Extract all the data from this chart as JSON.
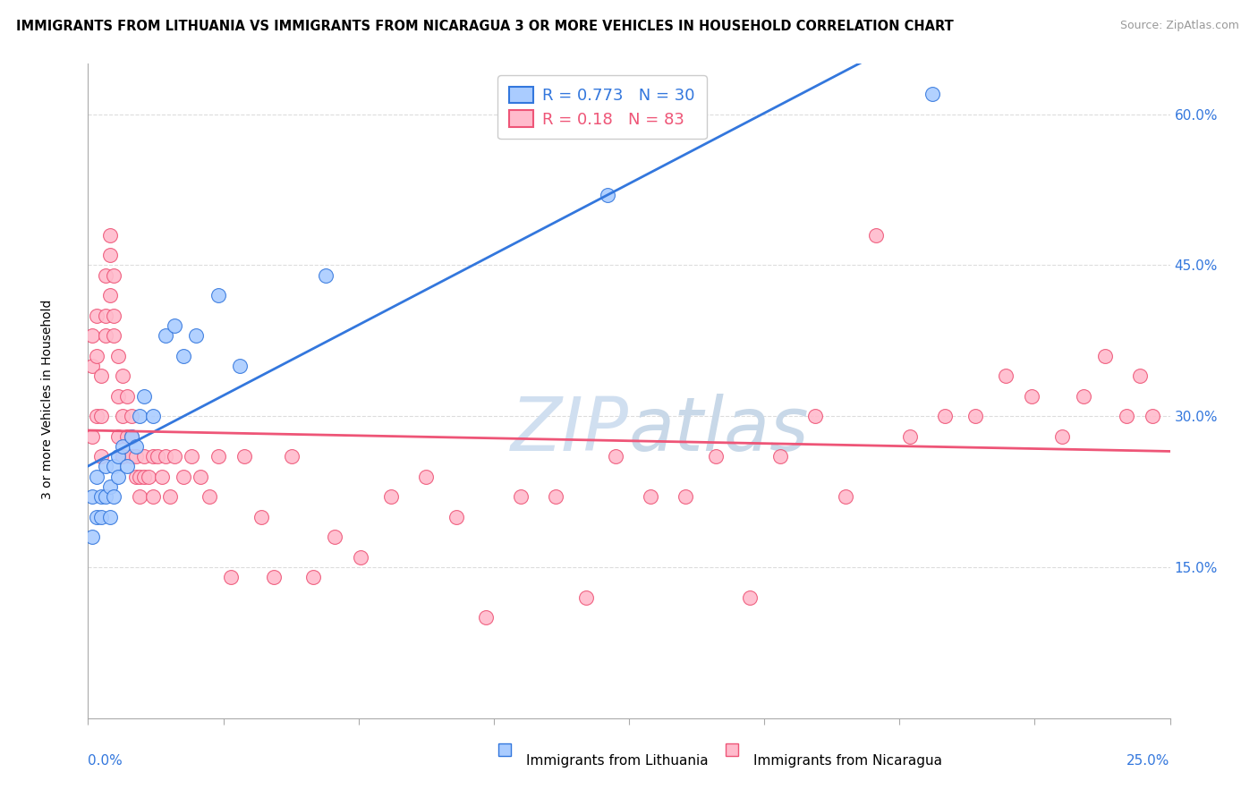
{
  "title": "IMMIGRANTS FROM LITHUANIA VS IMMIGRANTS FROM NICARAGUA 3 OR MORE VEHICLES IN HOUSEHOLD CORRELATION CHART",
  "source": "Source: ZipAtlas.com",
  "ylabel": "3 or more Vehicles in Household",
  "y_ticks": [
    0.15,
    0.3,
    0.45,
    0.6
  ],
  "x_lim": [
    0.0,
    0.25
  ],
  "y_lim": [
    0.0,
    0.65
  ],
  "legend_label1": "Immigrants from Lithuania",
  "legend_label2": "Immigrants from Nicaragua",
  "r1": 0.773,
  "n1": 30,
  "r2": 0.18,
  "n2": 83,
  "color1": "#aaccff",
  "color2": "#ffbbcc",
  "line_color1": "#3377dd",
  "line_color2": "#ee5577",
  "watermark_zip_color": "#d0dff0",
  "watermark_atlas_color": "#c8d8e8",
  "lithuania_x": [
    0.001,
    0.001,
    0.002,
    0.002,
    0.003,
    0.003,
    0.004,
    0.004,
    0.005,
    0.005,
    0.006,
    0.006,
    0.007,
    0.007,
    0.008,
    0.009,
    0.01,
    0.011,
    0.012,
    0.013,
    0.015,
    0.018,
    0.02,
    0.022,
    0.025,
    0.03,
    0.035,
    0.055,
    0.12,
    0.195
  ],
  "lithuania_y": [
    0.22,
    0.18,
    0.2,
    0.24,
    0.2,
    0.22,
    0.25,
    0.22,
    0.23,
    0.2,
    0.22,
    0.25,
    0.24,
    0.26,
    0.27,
    0.25,
    0.28,
    0.27,
    0.3,
    0.32,
    0.3,
    0.38,
    0.39,
    0.36,
    0.38,
    0.42,
    0.35,
    0.44,
    0.52,
    0.62
  ],
  "nicaragua_x": [
    0.001,
    0.001,
    0.001,
    0.002,
    0.002,
    0.002,
    0.003,
    0.003,
    0.003,
    0.004,
    0.004,
    0.004,
    0.005,
    0.005,
    0.005,
    0.006,
    0.006,
    0.006,
    0.007,
    0.007,
    0.007,
    0.008,
    0.008,
    0.008,
    0.009,
    0.009,
    0.01,
    0.01,
    0.01,
    0.011,
    0.011,
    0.012,
    0.012,
    0.013,
    0.013,
    0.014,
    0.015,
    0.015,
    0.016,
    0.017,
    0.018,
    0.019,
    0.02,
    0.022,
    0.024,
    0.026,
    0.028,
    0.03,
    0.033,
    0.036,
    0.04,
    0.043,
    0.047,
    0.052,
    0.057,
    0.063,
    0.07,
    0.078,
    0.085,
    0.092,
    0.1,
    0.108,
    0.115,
    0.122,
    0.13,
    0.138,
    0.145,
    0.153,
    0.16,
    0.168,
    0.175,
    0.182,
    0.19,
    0.198,
    0.205,
    0.212,
    0.218,
    0.225,
    0.23,
    0.235,
    0.24,
    0.243,
    0.246
  ],
  "nicaragua_y": [
    0.28,
    0.35,
    0.38,
    0.3,
    0.36,
    0.4,
    0.26,
    0.3,
    0.34,
    0.38,
    0.4,
    0.44,
    0.42,
    0.46,
    0.48,
    0.44,
    0.4,
    0.38,
    0.36,
    0.32,
    0.28,
    0.34,
    0.3,
    0.26,
    0.32,
    0.28,
    0.26,
    0.3,
    0.28,
    0.26,
    0.24,
    0.24,
    0.22,
    0.26,
    0.24,
    0.24,
    0.26,
    0.22,
    0.26,
    0.24,
    0.26,
    0.22,
    0.26,
    0.24,
    0.26,
    0.24,
    0.22,
    0.26,
    0.14,
    0.26,
    0.2,
    0.14,
    0.26,
    0.14,
    0.18,
    0.16,
    0.22,
    0.24,
    0.2,
    0.1,
    0.22,
    0.22,
    0.12,
    0.26,
    0.22,
    0.22,
    0.26,
    0.12,
    0.26,
    0.3,
    0.22,
    0.48,
    0.28,
    0.3,
    0.3,
    0.34,
    0.32,
    0.28,
    0.32,
    0.36,
    0.3,
    0.34,
    0.3
  ]
}
